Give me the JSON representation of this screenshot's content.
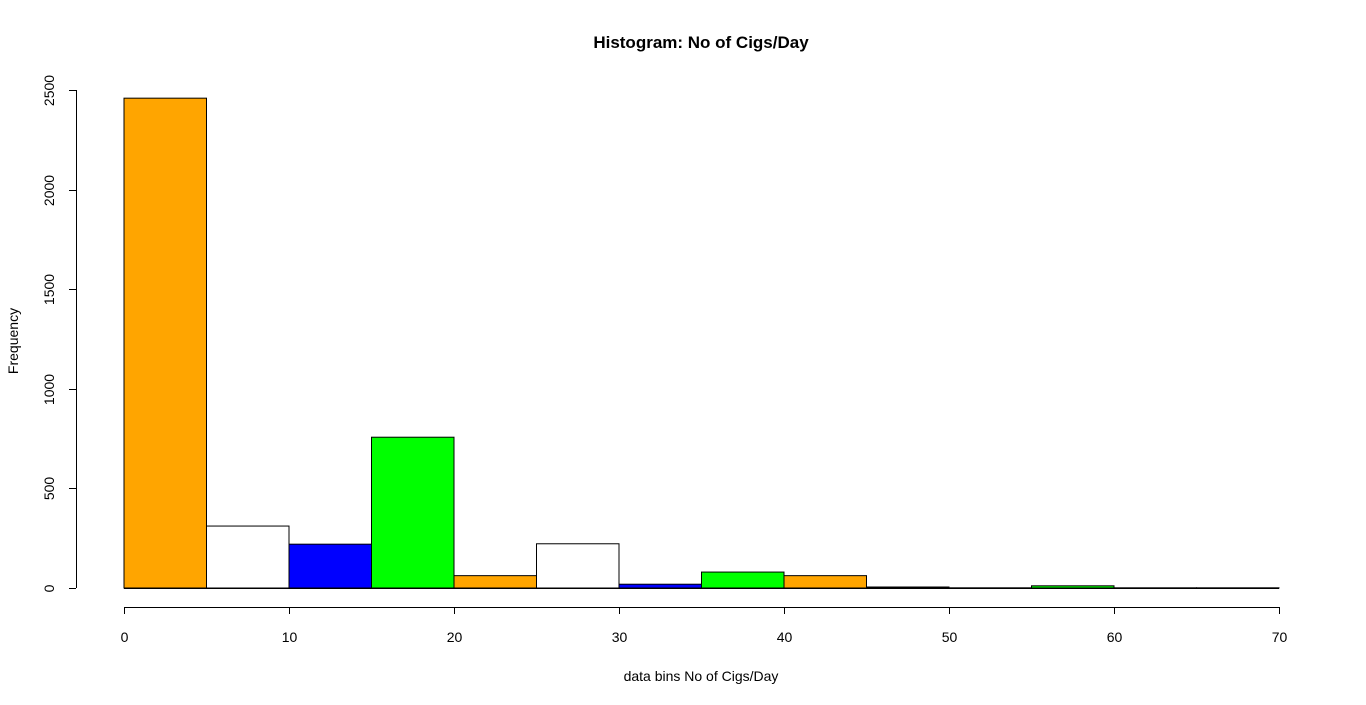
{
  "chart_data": {
    "type": "bar",
    "title": "Histogram: No of Cigs/Day",
    "xlabel": "data bins No of Cigs/Day",
    "ylabel": "Frequency",
    "xlim": [
      0,
      70
    ],
    "ylim": [
      0,
      2500
    ],
    "x_ticks": [
      0,
      10,
      20,
      30,
      40,
      50,
      60,
      70
    ],
    "y_ticks": [
      0,
      500,
      1000,
      1500,
      2000,
      2500
    ],
    "bin_edges": [
      0,
      5,
      10,
      15,
      20,
      25,
      30,
      35,
      40,
      45,
      50,
      55,
      60,
      65,
      70
    ],
    "values": [
      2459,
      311,
      220,
      757,
      62,
      222,
      19,
      80,
      62,
      5,
      1,
      11,
      1,
      1
    ],
    "bar_colors": [
      "#FFA500",
      "#FFFFFF",
      "#0000FF",
      "#00FF00"
    ],
    "grid": false,
    "legend": "none"
  }
}
